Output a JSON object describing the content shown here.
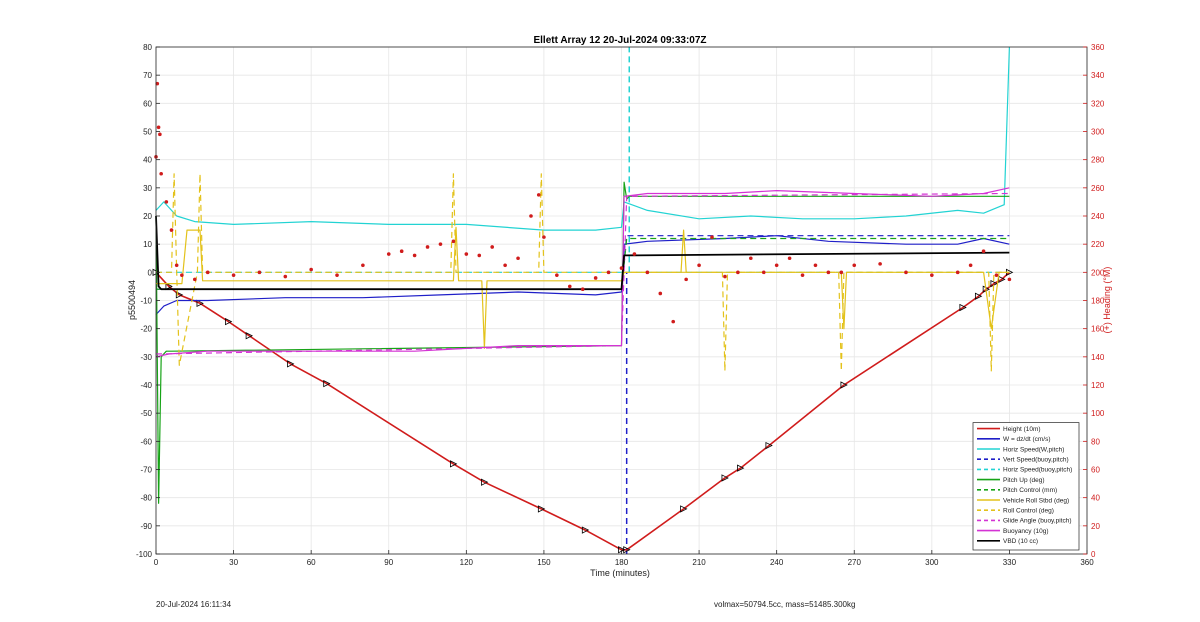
{
  "chart_data": {
    "type": "line",
    "title": "Ellett Array 12 20-Jul-2024 09:33:07Z",
    "xlabel": "Time (minutes)",
    "ylabel": "p5500494",
    "ylabel_right": "(+) Heading (°M)",
    "xlim": [
      0,
      360
    ],
    "ylim": [
      -100,
      80
    ],
    "ylim_right": [
      0,
      360
    ],
    "xticks": [
      0,
      30,
      60,
      90,
      120,
      150,
      180,
      210,
      240,
      270,
      300,
      330,
      360
    ],
    "yticks": [
      -100,
      -90,
      -80,
      -70,
      -60,
      -50,
      -40,
      -30,
      -20,
      -10,
      0,
      10,
      20,
      30,
      40,
      50,
      60,
      70,
      80
    ],
    "yticks_right": [
      0,
      20,
      40,
      60,
      80,
      100,
      120,
      140,
      160,
      180,
      200,
      220,
      240,
      260,
      280,
      300,
      320,
      340,
      360
    ],
    "grid": true,
    "legend_position": "bottom-right",
    "vertical_markers": [
      {
        "x": 182,
        "color": "#1f1fc8",
        "dash": true,
        "from": -100,
        "to": 0
      },
      {
        "x": 183,
        "color": "#22d3d3",
        "dash": true,
        "from": 0,
        "to": 80
      }
    ],
    "series": [
      {
        "name": "Height (10m)",
        "color": "#d01c1c",
        "style": "solid",
        "width": 1.6,
        "markers": true,
        "x": [
          0,
          5,
          9,
          17,
          28,
          36,
          52,
          66,
          115,
          127,
          149,
          166,
          180,
          182,
          204,
          220,
          226,
          237,
          266,
          312,
          318,
          321,
          324,
          327,
          330
        ],
        "y": [
          0,
          -5,
          -8,
          -11,
          -17.5,
          -22.5,
          -32.5,
          -39.5,
          -68,
          -74.5,
          -84,
          -91.5,
          -98.5,
          -98.5,
          -84,
          -73,
          -69.5,
          -61.5,
          -40,
          -12.5,
          -8.5,
          -6,
          -4,
          -2.5,
          0
        ]
      },
      {
        "name": "W = dz/dt (cm/s)",
        "color": "#1f1fc8",
        "style": "solid",
        "width": 1.2,
        "x": [
          0,
          3,
          8,
          20,
          50,
          80,
          110,
          140,
          170,
          180,
          181,
          190,
          220,
          240,
          260,
          290,
          310,
          320,
          330
        ],
        "y": [
          -15,
          -12,
          -10,
          -10,
          -9,
          -9,
          -8,
          -7,
          -8,
          -7,
          10,
          11,
          12,
          13,
          11,
          10,
          10,
          12,
          10
        ]
      },
      {
        "name": "Horiz Speed(W,pitch)",
        "color": "#22d3d3",
        "style": "solid",
        "width": 1.2,
        "x": [
          0,
          3,
          8,
          15,
          30,
          60,
          90,
          120,
          150,
          170,
          180,
          181,
          190,
          210,
          230,
          250,
          270,
          290,
          310,
          320,
          328,
          330
        ],
        "y": [
          22,
          25,
          20,
          18,
          17,
          18,
          17,
          17,
          15,
          15,
          16,
          25,
          22,
          19,
          20,
          19,
          19,
          20,
          22,
          21,
          24,
          80
        ]
      },
      {
        "name": "Vert Speed(buoy,pitch)",
        "color": "#1f1fc8",
        "style": "dash",
        "width": 1.2,
        "x": [
          0,
          180,
          182,
          330
        ],
        "y": [
          -6,
          -6,
          13,
          13
        ]
      },
      {
        "name": "Horiz Speed(buoy,pitch)",
        "color": "#22d3d3",
        "style": "dash",
        "width": 1.2,
        "x": [
          0,
          330
        ],
        "y": [
          0,
          0
        ]
      },
      {
        "name": "Pitch Up (deg)",
        "color": "#17a317",
        "style": "solid",
        "width": 1.2,
        "x": [
          0,
          1,
          2,
          4,
          6,
          180,
          181,
          182,
          183,
          330
        ],
        "y": [
          20,
          -82,
          -30,
          -28,
          -28,
          -26,
          32,
          26,
          27,
          27
        ]
      },
      {
        "name": "Pitch Control (mm)",
        "color": "#17a317",
        "style": "dash",
        "width": 1.2,
        "x": [
          0,
          180,
          182,
          330
        ],
        "y": [
          -6,
          -6,
          12,
          12
        ]
      },
      {
        "name": "Vehicle Roll Stbd (deg)",
        "color": "#e3c21b",
        "style": "solid",
        "width": 1.2,
        "x": [
          0,
          10,
          12,
          17,
          18,
          115,
          116,
          117,
          126,
          127,
          128,
          180,
          181,
          203,
          204,
          205,
          265,
          266,
          267,
          320,
          323,
          326,
          330
        ],
        "y": [
          -4,
          -4,
          15,
          15,
          -3,
          -3,
          16,
          -3,
          -3,
          -27,
          -3,
          -3,
          0,
          0,
          15,
          0,
          0,
          -20,
          0,
          0,
          -20,
          0,
          0
        ]
      },
      {
        "name": "Roll Control (deg)",
        "color": "#e3c21b",
        "style": "dash",
        "width": 1.2,
        "x": [
          0,
          6,
          7,
          8,
          9,
          16,
          17,
          18,
          114,
          115,
          116,
          148,
          149,
          150,
          180,
          182,
          219,
          220,
          221,
          264,
          265,
          266,
          322,
          323,
          324,
          330
        ],
        "y": [
          0,
          0,
          35,
          0,
          -33,
          0,
          35,
          0,
          0,
          35,
          0,
          0,
          35,
          0,
          0,
          0,
          0,
          -35,
          0,
          0,
          -35,
          0,
          0,
          -35,
          0,
          0
        ]
      },
      {
        "name": "Glide Angle (buoy,pitch)",
        "color": "#d433d4",
        "style": "dash",
        "width": 1.2,
        "x": [
          0,
          180,
          182,
          330
        ],
        "y": [
          -29,
          -26,
          27,
          28
        ]
      },
      {
        "name": "Buoyancy (10g)",
        "color": "#d433d4",
        "style": "solid",
        "width": 1.2,
        "x": [
          0,
          5,
          20,
          60,
          100,
          140,
          180,
          181,
          190,
          220,
          240,
          270,
          300,
          320,
          330
        ],
        "y": [
          -30,
          -29,
          -28,
          -28,
          -28,
          -26,
          -26,
          27,
          28,
          28,
          29,
          28,
          27,
          28,
          30
        ]
      },
      {
        "name": "VBD (10 cc)",
        "color": "#000000",
        "style": "solid",
        "width": 1.8,
        "x": [
          0,
          1,
          2,
          180,
          181,
          182,
          330
        ],
        "y": [
          20,
          -5,
          -6,
          -6,
          6,
          6,
          7
        ]
      },
      {
        "name": "Heading (°M)",
        "axis": "right",
        "color": "#d01c1c",
        "style": "dots",
        "legend": false,
        "x": [
          0,
          2,
          4,
          6,
          8,
          10,
          15,
          20,
          30,
          40,
          50,
          60,
          70,
          80,
          90,
          95,
          100,
          105,
          110,
          115,
          120,
          125,
          130,
          135,
          140,
          145,
          148,
          150,
          155,
          160,
          165,
          170,
          175,
          180,
          185,
          190,
          195,
          200,
          205,
          210,
          215,
          220,
          225,
          230,
          235,
          240,
          245,
          250,
          255,
          260,
          265,
          270,
          280,
          290,
          300,
          310,
          315,
          320,
          325,
          330
        ],
        "y": [
          282,
          270,
          250,
          230,
          205,
          198,
          195,
          200,
          198,
          200,
          197,
          202,
          198,
          205,
          213,
          215,
          212,
          218,
          220,
          222,
          213,
          212,
          218,
          205,
          210,
          240,
          255,
          225,
          198,
          190,
          188,
          196,
          200,
          203,
          213,
          200,
          185,
          165,
          195,
          205,
          225,
          197,
          200,
          210,
          200,
          205,
          210,
          198,
          205,
          200,
          200,
          205,
          206,
          200,
          198,
          200,
          205,
          215,
          198,
          195
        ]
      }
    ],
    "heading_outliers": [
      {
        "x": 0.5,
        "y": 334
      },
      {
        "x": 1,
        "y": 303
      },
      {
        "x": 1.5,
        "y": 298
      }
    ]
  },
  "footer": {
    "left": "20-Jul-2024 16:11:34",
    "right": "volmax=50794.5cc, mass=51485.300kg"
  }
}
